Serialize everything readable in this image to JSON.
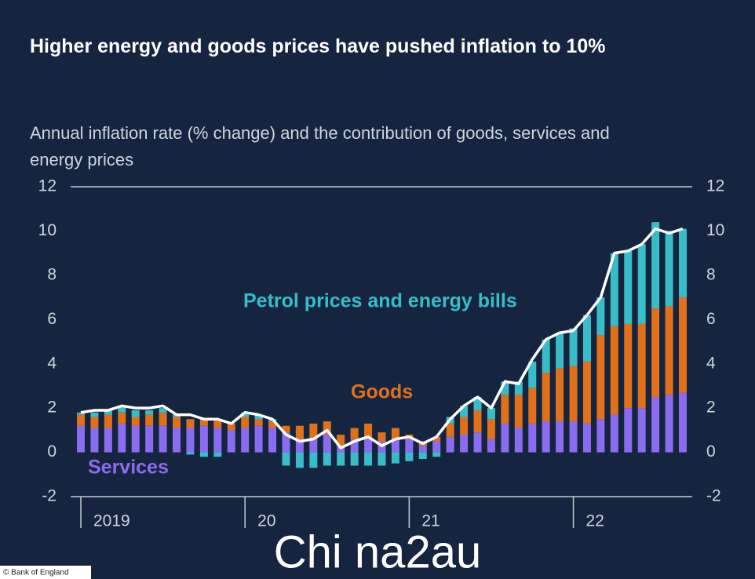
{
  "chart_data": {
    "type": "stacked-bar-line",
    "title": "Higher energy and goods prices have pushed inflation to 10%",
    "subtitle": "Annual inflation rate (% change) and the contribution of goods, services and energy prices",
    "categories": [
      "2019",
      null,
      null,
      null,
      null,
      null,
      null,
      null,
      null,
      null,
      null,
      null,
      "20",
      null,
      null,
      null,
      null,
      null,
      null,
      null,
      null,
      null,
      null,
      null,
      "21",
      null,
      null,
      null,
      null,
      null,
      null,
      null,
      null,
      null,
      null,
      null,
      "22",
      null,
      null,
      null,
      null,
      null,
      null,
      null,
      null
    ],
    "series": [
      {
        "name": "Services",
        "color": "#8a6cf0",
        "values": [
          1.2,
          1.1,
          1.1,
          1.3,
          1.2,
          1.2,
          1.2,
          1.1,
          1.1,
          1.2,
          1.1,
          1.0,
          1.1,
          1.2,
          1.1,
          0.9,
          0.6,
          0.6,
          0.8,
          0.3,
          0.6,
          0.6,
          0.5,
          0.6,
          0.6,
          0.3,
          0.5,
          0.7,
          0.8,
          0.9,
          0.6,
          1.3,
          1.1,
          1.3,
          1.4,
          1.4,
          1.4,
          1.3,
          1.5,
          1.7,
          2.0,
          2.0,
          2.5,
          2.6,
          2.7
        ]
      },
      {
        "name": "Goods",
        "color": "#e0701a",
        "values": [
          0.5,
          0.5,
          0.6,
          0.5,
          0.4,
          0.5,
          0.6,
          0.5,
          0.4,
          0.3,
          0.4,
          0.3,
          0.5,
          0.3,
          0.3,
          0.3,
          0.6,
          0.7,
          0.6,
          0.5,
          0.5,
          0.7,
          0.4,
          0.5,
          0.2,
          0.2,
          0.2,
          0.6,
          0.8,
          1.0,
          0.9,
          1.3,
          1.5,
          1.6,
          2.2,
          2.4,
          2.5,
          2.8,
          3.8,
          4.0,
          3.8,
          3.8,
          4.0,
          4.0,
          4.3
        ]
      },
      {
        "name": "Petrol prices and energy bills",
        "color": "#38bcc8",
        "values": [
          0.1,
          0.2,
          0.2,
          0.3,
          0.3,
          0.2,
          0.2,
          0.1,
          -0.1,
          -0.2,
          -0.2,
          0.0,
          0.2,
          0.2,
          0.1,
          -0.6,
          -0.7,
          -0.7,
          -0.6,
          -0.6,
          -0.6,
          -0.6,
          -0.6,
          -0.5,
          -0.4,
          -0.3,
          -0.2,
          0.3,
          0.5,
          0.6,
          0.5,
          0.6,
          0.6,
          1.2,
          1.5,
          1.6,
          1.7,
          2.1,
          1.7,
          3.3,
          3.3,
          3.6,
          3.9,
          3.4,
          3.1
        ]
      }
    ],
    "inflation": {
      "color": "#ffffff",
      "values": [
        1.8,
        1.9,
        1.9,
        2.1,
        2.0,
        2.0,
        2.1,
        1.7,
        1.7,
        1.5,
        1.5,
        1.3,
        1.8,
        1.7,
        1.5,
        0.8,
        0.5,
        0.6,
        1.0,
        0.2,
        0.5,
        0.7,
        0.3,
        0.6,
        0.7,
        0.4,
        0.7,
        1.5,
        2.1,
        2.5,
        2.0,
        3.2,
        3.1,
        4.2,
        5.1,
        5.4,
        5.5,
        6.2,
        7.0,
        9.0,
        9.1,
        9.4,
        10.1,
        9.9,
        10.1
      ]
    },
    "ylim": [
      -2,
      12
    ],
    "yticks": [
      -2,
      0,
      2,
      4,
      6,
      8,
      10,
      12
    ],
    "y2lim": [
      -2,
      12
    ],
    "y2ticks": [
      -2,
      0,
      2,
      4,
      6,
      8,
      10,
      12
    ],
    "source": "© Bank of England",
    "watermark": "Chi na2au"
  }
}
